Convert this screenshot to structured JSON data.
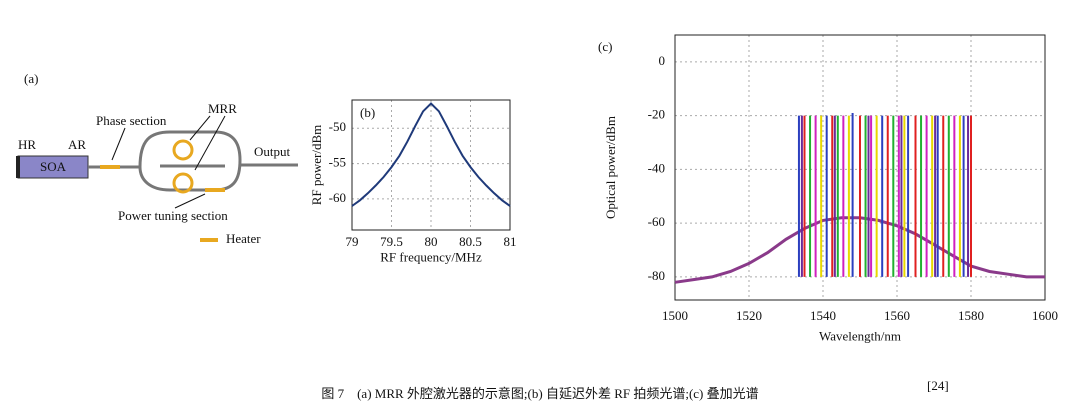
{
  "panel_a": {
    "label": "(a)",
    "hr": "HR",
    "ar": "AR",
    "soa": "SOA",
    "phase": "Phase section",
    "mrr": "MRR",
    "output": "Output",
    "power_tuning": "Power tuning section",
    "heater": "Heater"
  },
  "chart_data": [
    {
      "type": "line",
      "label": "(b)",
      "xlabel": "RF frequency/MHz",
      "ylabel": "RF power/dBm",
      "x": [
        79,
        79.1,
        79.2,
        79.3,
        79.4,
        79.5,
        79.6,
        79.7,
        79.8,
        79.9,
        80,
        80.1,
        80.2,
        80.3,
        80.4,
        80.5,
        80.6,
        80.7,
        80.8,
        80.9,
        81
      ],
      "values": [
        -61.0,
        -60.2,
        -59.2,
        -58.1,
        -56.9,
        -55.5,
        -53.9,
        -51.9,
        -49.7,
        -47.6,
        -46.5,
        -47.6,
        -49.7,
        -51.9,
        -53.9,
        -55.5,
        -56.9,
        -58.1,
        -59.2,
        -60.2,
        -61.0
      ],
      "color": "#1f3a7a",
      "xlim": [
        79,
        81
      ],
      "ylim": [
        -64.4,
        -46
      ],
      "xticks": [
        79,
        79.5,
        80,
        80.5,
        81
      ],
      "yticks": [
        -50,
        -55,
        -60
      ],
      "grid": true
    },
    {
      "type": "spectrum",
      "label": "(c)",
      "xlabel": "Wavelength/nm",
      "ylabel": "Optical power/dBm",
      "xlim": [
        1500,
        1600
      ],
      "ylim": [
        -88.6,
        10
      ],
      "xticks": [
        1500,
        1520,
        1540,
        1560,
        1580,
        1600
      ],
      "yticks": [
        0,
        -20,
        -40,
        -60,
        -80
      ],
      "grid": true,
      "series": [
        {
          "color": "#2b3fbf",
          "x": [
            1533.5,
            1541,
            1548,
            1556,
            1563,
            1571,
            1578
          ],
          "values": [
            -20,
            -20,
            -19,
            -20,
            -20,
            -20,
            -20
          ]
        },
        {
          "color": "#e02020",
          "x": [
            1535,
            1542.5,
            1550,
            1557.5,
            1565,
            1572.5,
            1580
          ],
          "values": [
            -20,
            -20,
            -20,
            -20,
            -20,
            -20,
            -20
          ]
        },
        {
          "color": "#22b030",
          "x": [
            1536.5,
            1544,
            1551.5,
            1559,
            1566.5,
            1574
          ],
          "values": [
            -20,
            -20,
            -20,
            -20,
            -20,
            -20
          ]
        },
        {
          "color": "#d020c0",
          "x": [
            1538,
            1545.5,
            1553,
            1560.5,
            1568,
            1575.5
          ],
          "values": [
            -20,
            -20,
            -20,
            -20,
            -20,
            -20
          ]
        },
        {
          "color": "#e8d800",
          "x": [
            1539.5,
            1547,
            1554.5,
            1562,
            1569.5,
            1577
          ],
          "values": [
            -20,
            -20,
            -20,
            -20,
            -20,
            -20
          ]
        },
        {
          "color": "#6a2a9a",
          "x": [
            1534.3,
            1543.2,
            1552.3,
            1561.2,
            1570.3,
            1579.2
          ],
          "values": [
            -20,
            -20,
            -20,
            -20,
            -20,
            -20
          ]
        }
      ],
      "floor": {
        "color": "#8a3a8a",
        "x": [
          1500,
          1505,
          1510,
          1515,
          1520,
          1525,
          1530,
          1535,
          1540,
          1545,
          1550,
          1555,
          1560,
          1565,
          1570,
          1575,
          1580,
          1585,
          1590,
          1595,
          1600
        ],
        "values": [
          -82,
          -81,
          -80,
          -78,
          -75,
          -71,
          -66,
          -62,
          -59,
          -58,
          -58,
          -59,
          -61,
          -64,
          -68,
          -72,
          -76,
          -78,
          -79,
          -80,
          -80
        ]
      }
    }
  ],
  "caption": {
    "text": "图 7　(a) MRR 外腔激光器的示意图;(b) 自延迟外差 RF 拍频光谱;(c) 叠加光谱",
    "ref": "[24]"
  }
}
